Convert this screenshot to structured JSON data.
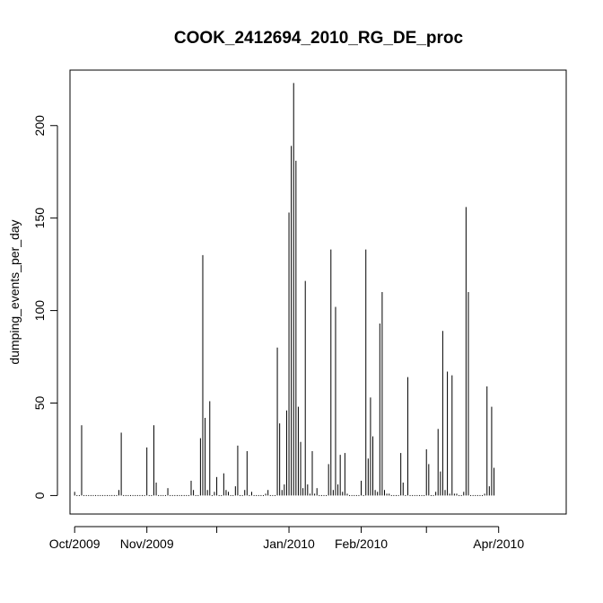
{
  "chart_data": {
    "type": "bar",
    "title": "COOK_2412694_2010_RG_DE_proc",
    "xlabel": "",
    "ylabel": "dumping_events_per_day",
    "ylim": [
      -10,
      230
    ],
    "yticks": [
      0,
      50,
      100,
      150,
      200
    ],
    "xlim": [
      "2009-09-29",
      "2010-04-30"
    ],
    "xtick_labels": [
      {
        "date": "2009-10-01",
        "label": "Oct/2009"
      },
      {
        "date": "2009-11-01",
        "label": "Nov/2009"
      },
      {
        "date": "2009-12-01",
        "label": ""
      },
      {
        "date": "2010-01-01",
        "label": "Jan/2010"
      },
      {
        "date": "2010-02-01",
        "label": "Feb/2010"
      },
      {
        "date": "2010-03-01",
        "label": ""
      },
      {
        "date": "2010-04-01",
        "label": "Apr/2010"
      }
    ],
    "grid": false,
    "bar_color": "#000000",
    "x": [
      "2009-10-01",
      "2009-10-04",
      "2009-10-20",
      "2009-10-21",
      "2009-11-01",
      "2009-11-04",
      "2009-11-05",
      "2009-11-10",
      "2009-11-20",
      "2009-11-21",
      "2009-11-24",
      "2009-11-25",
      "2009-11-26",
      "2009-11-27",
      "2009-11-28",
      "2009-11-30",
      "2009-12-01",
      "2009-12-04",
      "2009-12-05",
      "2009-12-06",
      "2009-12-09",
      "2009-12-10",
      "2009-12-13",
      "2009-12-14",
      "2009-12-16",
      "2009-12-22",
      "2009-12-23",
      "2009-12-27",
      "2009-12-28",
      "2009-12-29",
      "2009-12-30",
      "2009-12-31",
      "2010-01-01",
      "2010-01-02",
      "2010-01-03",
      "2010-01-04",
      "2010-01-05",
      "2010-01-06",
      "2010-01-07",
      "2010-01-08",
      "2010-01-09",
      "2010-01-10",
      "2010-01-11",
      "2010-01-12",
      "2010-01-13",
      "2010-01-18",
      "2010-01-19",
      "2010-01-20",
      "2010-01-21",
      "2010-01-22",
      "2010-01-23",
      "2010-01-24",
      "2010-01-25",
      "2010-01-26",
      "2010-02-01",
      "2010-02-03",
      "2010-02-04",
      "2010-02-05",
      "2010-02-06",
      "2010-02-07",
      "2010-02-08",
      "2010-02-09",
      "2010-02-10",
      "2010-02-11",
      "2010-02-12",
      "2010-02-13",
      "2010-02-18",
      "2010-02-19",
      "2010-02-21",
      "2010-03-01",
      "2010-03-02",
      "2010-03-05",
      "2010-03-06",
      "2010-03-07",
      "2010-03-08",
      "2010-03-09",
      "2010-03-10",
      "2010-03-11",
      "2010-03-12",
      "2010-03-13",
      "2010-03-14",
      "2010-03-17",
      "2010-03-18",
      "2010-03-19",
      "2010-03-26",
      "2010-03-27",
      "2010-03-28",
      "2010-03-29",
      "2010-03-30"
    ],
    "values": [
      2,
      38,
      3,
      34,
      26,
      38,
      7,
      4,
      8,
      3,
      31,
      130,
      42,
      3,
      51,
      2,
      10,
      12,
      3,
      2,
      5,
      27,
      3,
      24,
      2,
      1,
      3,
      80,
      39,
      3,
      6,
      46,
      153,
      189,
      223,
      181,
      48,
      29,
      4,
      116,
      6,
      1,
      24,
      1,
      4,
      17,
      133,
      3,
      102,
      6,
      22,
      2,
      23,
      1,
      8,
      133,
      20,
      53,
      32,
      3,
      2,
      93,
      110,
      3,
      1,
      1,
      23,
      7,
      64,
      25,
      17,
      2,
      36,
      13,
      89,
      3,
      67,
      1,
      65,
      1,
      1,
      2,
      156,
      110,
      1,
      59,
      5,
      48,
      15
    ]
  }
}
